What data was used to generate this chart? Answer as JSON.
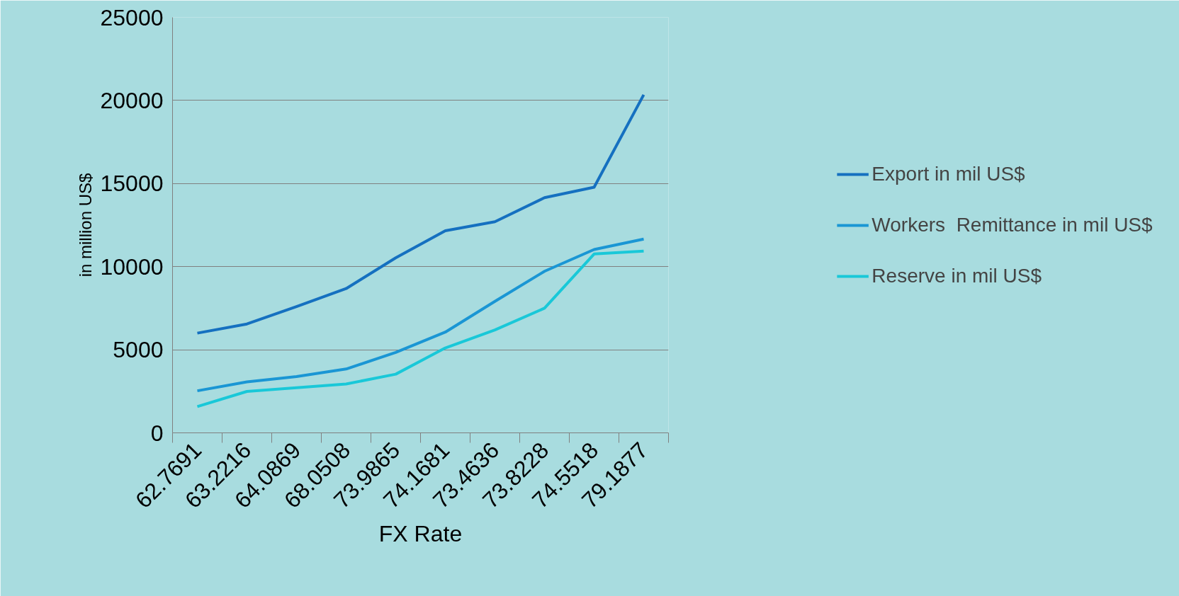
{
  "chart_data": {
    "type": "line",
    "xlabel": "FX Rate",
    "ylabel": "in million US$",
    "categories": [
      "62.7691",
      "63.2216",
      "64.0869",
      "68.0508",
      "73.9865",
      "74.1681",
      "73.4636",
      "73.8228",
      "74.5518",
      "79.1877"
    ],
    "series": [
      {
        "name": "Export in mil US$",
        "color": "#1570c0",
        "values": [
          6000,
          6550,
          7600,
          8680,
          10530,
          12160,
          12700,
          14150,
          14780,
          20340
        ]
      },
      {
        "name": "Workers  Remittance in mil US$",
        "color": "#1a96d4",
        "values": [
          2530,
          3070,
          3390,
          3840,
          4840,
          6060,
          7910,
          9720,
          11030,
          11660
        ]
      },
      {
        "name": "Reserve in mil US$",
        "color": "#19c8d8",
        "values": [
          1580,
          2490,
          2710,
          2940,
          3530,
          5110,
          6190,
          7500,
          10760,
          10940
        ]
      }
    ],
    "ylim": [
      0,
      25000
    ],
    "yticks": [
      0,
      5000,
      10000,
      15000,
      20000,
      25000
    ],
    "grid": "y",
    "legend": "right",
    "marker": "none",
    "line_style": "solid"
  }
}
